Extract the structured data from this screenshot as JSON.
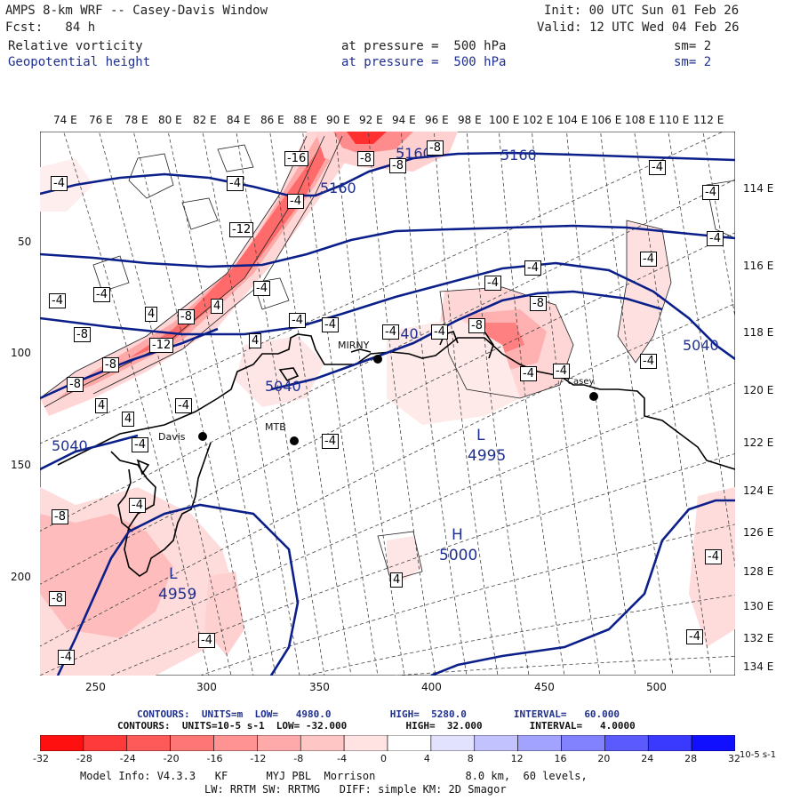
{
  "header": {
    "title": "AMPS 8-km WRF -- Casey-Davis Window",
    "init": "Init: 00 UTC Sun 01 Feb 26",
    "fcst": "Fcst:   84 h",
    "valid": "Valid: 12 UTC Wed 04 Feb 26",
    "field1_name": "Relative vorticity",
    "field1_level": "at pressure =  500 hPa",
    "field1_sm": "sm= 2",
    "field2_name": "Geopotential height",
    "field2_level": "at pressure =  500 hPa",
    "field2_sm": "sm= 2"
  },
  "axes": {
    "top_ticks": [
      "74 E",
      "76 E",
      "78 E",
      "80 E",
      "82 E",
      "84 E",
      "86 E",
      "88 E",
      "90 E",
      "92 E",
      "94 E",
      "96 E",
      "98 E",
      "100 E",
      "102 E",
      "104 E",
      "106 E",
      "108 E",
      "110 E",
      "112 E"
    ],
    "right_ticks": [
      "114 E",
      "116 E",
      "118 E",
      "120 E",
      "122 E",
      "124 E",
      "126 E",
      "128 E",
      "130 E",
      "132 E",
      "134 E"
    ],
    "left_ticks": [
      "50",
      "100",
      "150",
      "200"
    ],
    "bottom_ticks": [
      "250",
      "300",
      "350",
      "400",
      "450",
      "500"
    ]
  },
  "map_labels": {
    "stations": [
      "Davis",
      "MTB",
      "MIRNY",
      "Casey"
    ],
    "height_contours": [
      "5160",
      "5160",
      "5160",
      "5040",
      "5040",
      "5040",
      "5040"
    ],
    "systems": [
      {
        "type": "L",
        "value": "4995"
      },
      {
        "type": "H",
        "value": "5000"
      },
      {
        "type": "L",
        "value": "4959"
      }
    ],
    "vorticity_labels": [
      "-4",
      "-8",
      "-12",
      "-16",
      "4",
      "8"
    ]
  },
  "footer": {
    "contours1": "CONTOURS:  UNITS=m  LOW=   4980.0          HIGH=  5280.0        INTERVAL=   60.000",
    "contours2": "CONTOURS:  UNITS=10-5 s-1  LOW= -32.000          HIGH=  32.000        INTERVAL=   4.0000",
    "model1": "Model Info: V4.3.3   KF      MYJ PBL  Morrison              8.0 km,  60 levels,",
    "model2": "LW: RRTM SW: RRTMG   DIFF: simple KM: 2D Smagor"
  },
  "legend": {
    "labels": [
      "-32",
      "-28",
      "-24",
      "-20",
      "-16",
      "-12",
      "-8",
      "-4",
      "0",
      "4",
      "8",
      "12",
      "16",
      "20",
      "24",
      "28",
      "32"
    ],
    "unit": "10-5 s-1",
    "colors": [
      "#ff1010",
      "#ff3a3a",
      "#ff5a5a",
      "#ff7676",
      "#ff9292",
      "#ffaaaa",
      "#ffc6c6",
      "#ffe2e2",
      "#ffffff",
      "#ffffff",
      "#e2e2ff",
      "#c2c2ff",
      "#a2a2ff",
      "#8282ff",
      "#5a5aff",
      "#3a3aff",
      "#1010ff"
    ]
  },
  "colors": {
    "height_contour": "#0b1f8a",
    "vorticity_neg_light": "#ffe0e0",
    "vorticity_neg_mid": "#ffb0b0",
    "vorticity_neg_strong": "#ff5050"
  }
}
